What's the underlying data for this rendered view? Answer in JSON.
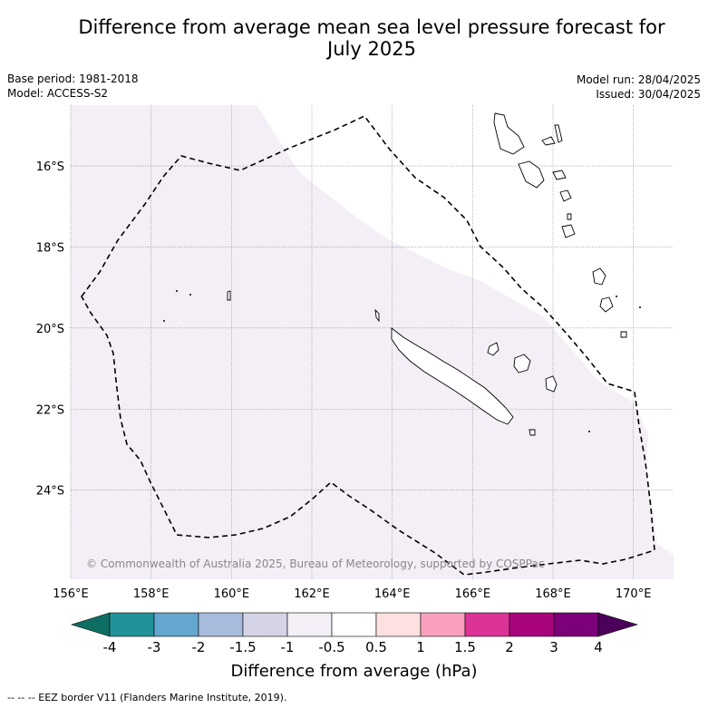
{
  "title_line1": "Difference from average mean sea level pressure forecast for",
  "title_line2": "July 2025",
  "base_period": "Base period: 1981-2018",
  "model": "Model: ACCESS-S2",
  "model_run": "Model run: 28/04/2025",
  "issued": "Issued: 30/04/2025",
  "copyright": "© Commonwealth of Australia 2025, Bureau of Meteorology, supported by COSPPac",
  "footer": "--  --  -- EEZ border V11 (Flanders Marine Institute, 2019).",
  "map": {
    "lon_range": [
      156,
      171
    ],
    "lat_range": [
      -26.2,
      -14.5
    ],
    "lon_ticks": [
      "156°E",
      "158°E",
      "160°E",
      "162°E",
      "164°E",
      "166°E",
      "168°E",
      "170°E"
    ],
    "lat_ticks": [
      "16°S",
      "18°S",
      "20°S",
      "22°S",
      "24°S"
    ],
    "anomaly_fill_color": "#f4eef6",
    "anomaly_category": "-1 to -0.5 hPa"
  },
  "colorbar": {
    "title": "Difference from average (hPa)",
    "tick_labels": [
      "-4",
      "-3",
      "-2",
      "-1.5",
      "-1",
      "-0.5",
      "0.5",
      "1",
      "1.5",
      "2",
      "3",
      "4"
    ],
    "colors": [
      "#0e6e63",
      "#1f9399",
      "#63a6cf",
      "#a7bcdc",
      "#d4d4e6",
      "#f4eef6",
      "#ffffff",
      "#fde1e1",
      "#f8a0bc",
      "#dc3396",
      "#aa047d",
      "#7b0079",
      "#4b0059"
    ]
  }
}
